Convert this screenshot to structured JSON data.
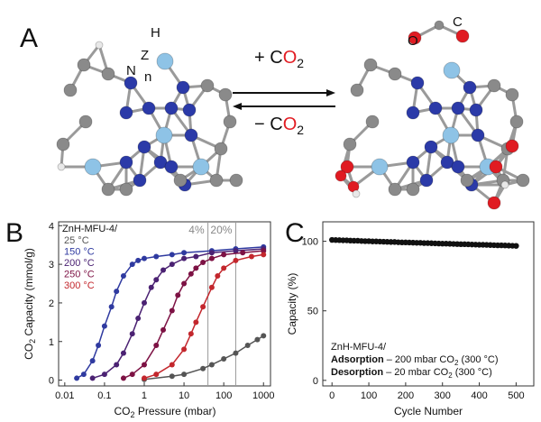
{
  "panel_labels": [
    "A",
    "B",
    "C"
  ],
  "panel_a": {
    "atom_labels": [
      "H",
      "Z",
      "n",
      "N",
      "O",
      "C"
    ],
    "forward": [
      "+ C",
      "O",
      "2"
    ],
    "reverse": [
      "− C",
      "O",
      "2"
    ]
  },
  "chart_data": [
    {
      "type": "line",
      "xscale": "log",
      "xlabel": [
        "CO",
        "2",
        " Pressure (mbar)"
      ],
      "ylabel": [
        "CO",
        "2",
        " Capacity (mmol/g)"
      ],
      "xlim": [
        0.007,
        1500
      ],
      "xticks": [
        0.01,
        0.1,
        1,
        10,
        100,
        1000
      ],
      "ylim": [
        -0.15,
        4.1
      ],
      "yticks": [
        0,
        1,
        2,
        3,
        4
      ],
      "legend_title": "ZnH-MFU-4/",
      "legend": "upper left",
      "annotations": [
        {
          "x": 40,
          "label": "4%"
        },
        {
          "x": 200,
          "label": "20%"
        }
      ],
      "series": [
        {
          "name": "25 °C",
          "color": "#555555",
          "x": [
            1,
            5,
            10,
            30,
            50,
            100,
            200,
            400,
            700,
            1000
          ],
          "values": [
            0.02,
            0.1,
            0.15,
            0.3,
            0.4,
            0.55,
            0.7,
            0.9,
            1.05,
            1.15
          ]
        },
        {
          "name": "150 °C",
          "color": "#2f3aa0",
          "x": [
            0.02,
            0.03,
            0.05,
            0.07,
            0.1,
            0.15,
            0.2,
            0.3,
            0.5,
            0.7,
            1,
            2,
            5,
            10,
            50,
            200,
            1000
          ],
          "values": [
            0.05,
            0.15,
            0.5,
            0.9,
            1.4,
            1.9,
            2.3,
            2.7,
            3.0,
            3.1,
            3.15,
            3.2,
            3.25,
            3.3,
            3.35,
            3.4,
            3.45
          ]
        },
        {
          "name": "200 °C",
          "color": "#4b2273",
          "x": [
            0.05,
            0.1,
            0.2,
            0.3,
            0.5,
            0.7,
            1,
            1.5,
            2,
            3,
            5,
            10,
            20,
            50,
            200,
            1000
          ],
          "values": [
            0.05,
            0.15,
            0.4,
            0.7,
            1.2,
            1.6,
            2.0,
            2.4,
            2.6,
            2.85,
            3.0,
            3.15,
            3.2,
            3.3,
            3.35,
            3.4
          ]
        },
        {
          "name": "250 °C",
          "color": "#7d1244",
          "x": [
            0.3,
            0.5,
            1,
            2,
            3,
            5,
            7,
            10,
            15,
            20,
            30,
            50,
            100,
            300,
            1000
          ],
          "values": [
            0.05,
            0.15,
            0.4,
            0.9,
            1.3,
            1.8,
            2.2,
            2.5,
            2.75,
            2.9,
            3.05,
            3.15,
            3.25,
            3.3,
            3.35
          ]
        },
        {
          "name": "300 °C",
          "color": "#c3272d",
          "x": [
            1,
            2,
            5,
            10,
            15,
            20,
            30,
            50,
            70,
            100,
            200,
            500,
            1000
          ],
          "values": [
            0.05,
            0.15,
            0.4,
            0.8,
            1.2,
            1.5,
            1.9,
            2.4,
            2.7,
            2.9,
            3.1,
            3.2,
            3.25
          ]
        }
      ]
    },
    {
      "type": "scatter",
      "xlabel": "Cycle Number",
      "ylabel": "Capacity (%)",
      "xlim": [
        -25,
        548
      ],
      "xticks": [
        0,
        100,
        200,
        300,
        400,
        500
      ],
      "ylim": [
        -4,
        114
      ],
      "yticks": [
        0,
        50,
        100
      ],
      "annotation": {
        "title": "ZnH-MFU-4/",
        "lines": [
          [
            "Adsorption",
            " – 200 mbar CO",
            "2",
            " (300 °C)"
          ],
          [
            "Desorption",
            " – 20 mbar CO",
            "2",
            " (300 °C)"
          ]
        ]
      },
      "series": [
        {
          "color": "#111111",
          "x": [
            0,
            10,
            20,
            30,
            40,
            50,
            60,
            70,
            80,
            90,
            100,
            110,
            120,
            130,
            140,
            150,
            160,
            170,
            180,
            190,
            200,
            210,
            220,
            230,
            240,
            250,
            260,
            270,
            280,
            290,
            300,
            310,
            320,
            330,
            340,
            350,
            360,
            370,
            380,
            390,
            400,
            410,
            420,
            430,
            440,
            450,
            460,
            470,
            480,
            490,
            500
          ],
          "values": [
            101.0,
            100.9,
            100.8,
            100.7,
            100.7,
            100.5,
            100.4,
            100.4,
            100.2,
            100.1,
            100.1,
            99.9,
            99.9,
            99.8,
            99.7,
            99.6,
            99.5,
            99.5,
            99.3,
            99.2,
            99.2,
            99.1,
            99.0,
            98.9,
            98.9,
            98.7,
            98.7,
            98.6,
            98.5,
            98.4,
            98.3,
            98.3,
            98.2,
            98.1,
            98.0,
            97.9,
            97.9,
            97.8,
            97.7,
            97.6,
            97.5,
            97.5,
            97.4,
            97.3,
            97.2,
            97.1,
            97.1,
            97.0,
            96.9,
            96.8,
            96.7
          ]
        }
      ]
    }
  ]
}
